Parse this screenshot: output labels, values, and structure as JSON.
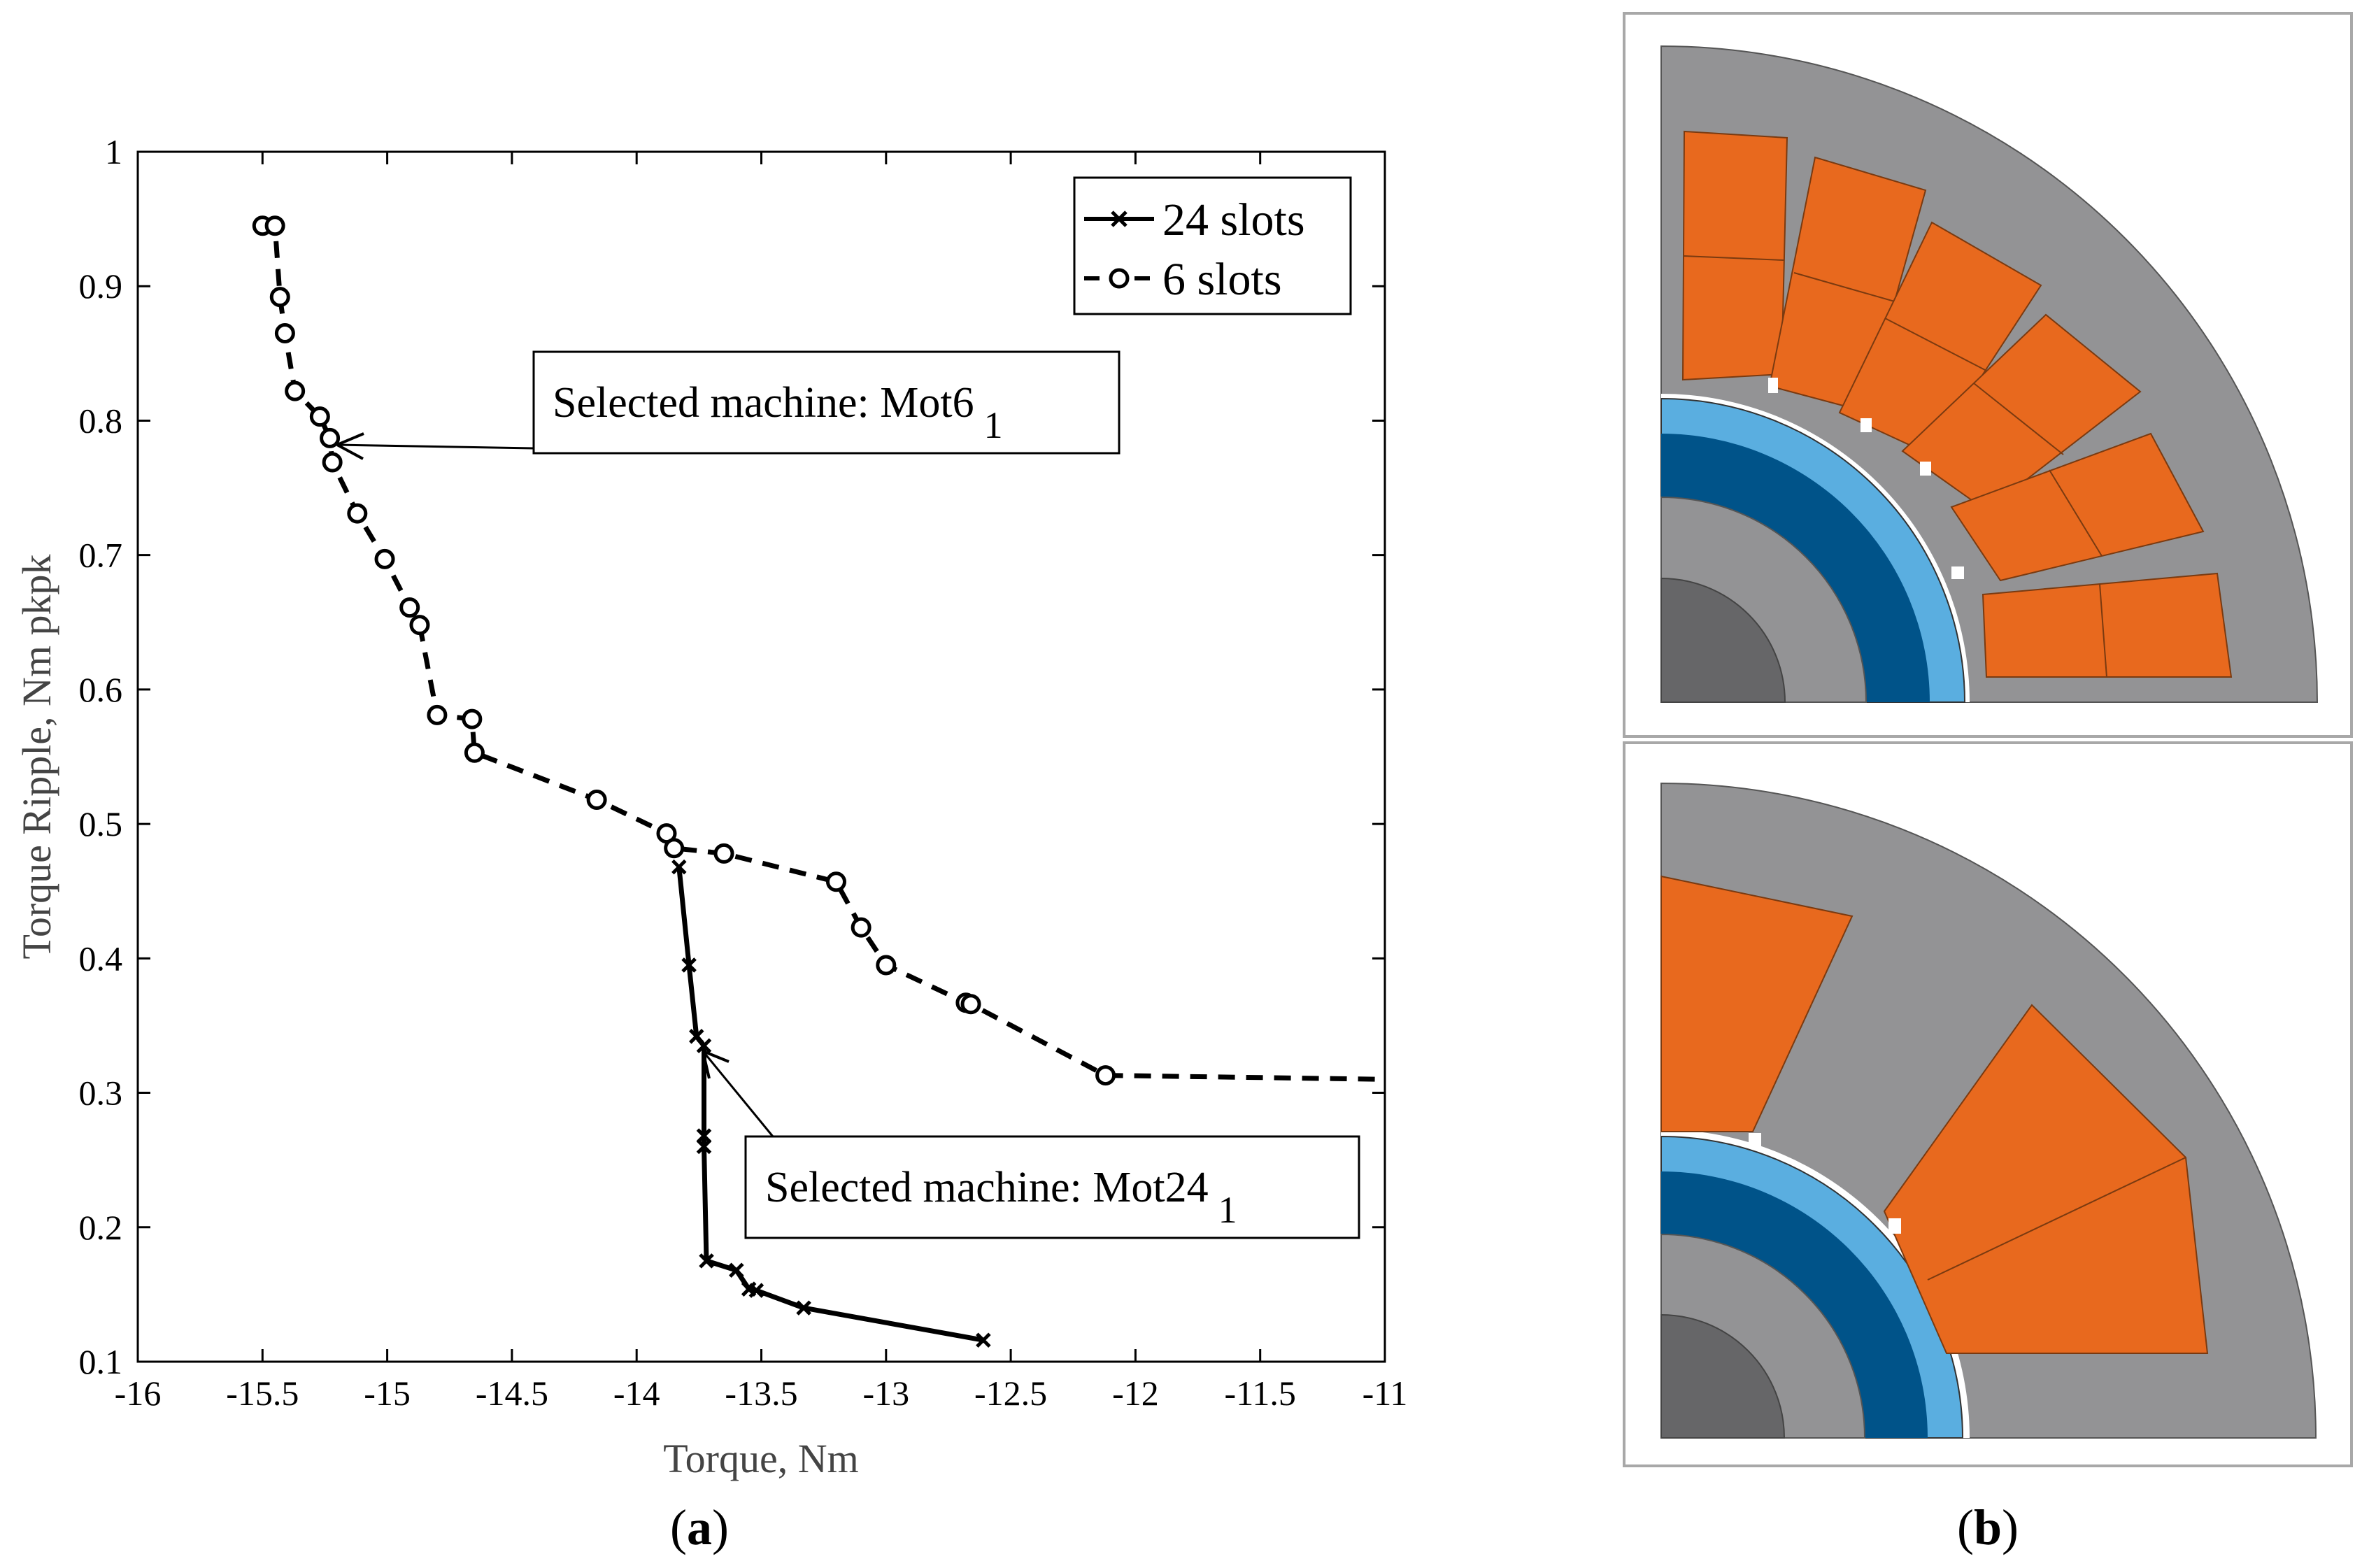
{
  "panel_a": {
    "label_open": "(",
    "label_letter": "a",
    "label_close": ")"
  },
  "panel_b": {
    "label_open": "(",
    "label_letter": "b",
    "label_close": ")"
  },
  "chart_data": {
    "type": "line",
    "title": "",
    "xlabel": "Torque, Nm",
    "ylabel": "Torque Ripple, Nm pkpk",
    "xlim": [
      -16,
      -11
    ],
    "ylim": [
      0.1,
      1
    ],
    "xticks": [
      -16,
      -15.5,
      -15,
      -14.5,
      -14,
      -13.5,
      -13,
      -12.5,
      -12,
      -11.5,
      -11
    ],
    "xtick_labels": [
      "-16",
      "-15.5",
      "-15",
      "-14.5",
      "-14",
      "-13.5",
      "-13",
      "-12.5",
      "-12",
      "-11.5",
      "-11"
    ],
    "yticks": [
      0.1,
      0.2,
      0.3,
      0.4,
      0.5,
      0.6,
      0.7,
      0.8,
      0.9,
      1
    ],
    "ytick_labels": [
      "0.1",
      "0.2",
      "0.3",
      "0.4",
      "0.5",
      "0.6",
      "0.7",
      "0.8",
      "0.9",
      "1"
    ],
    "legend_position": "top-right",
    "series": [
      {
        "name": "24 slots",
        "line": "solid",
        "marker": "x",
        "x": [
          -13.83,
          -13.79,
          -13.76,
          -13.73,
          -13.73,
          -13.73,
          -13.72,
          -13.6,
          -13.55,
          -13.52,
          -13.33,
          -12.61
        ],
        "y": [
          0.468,
          0.395,
          0.342,
          0.335,
          0.268,
          0.26,
          0.175,
          0.168,
          0.154,
          0.153,
          0.14,
          0.116
        ]
      },
      {
        "name": "6 slots",
        "line": "dashed",
        "marker": "o",
        "x": [
          -15.5,
          -15.45,
          -15.43,
          -15.41,
          -15.37,
          -15.27,
          -15.23,
          -15.22,
          -15.12,
          -15.01,
          -14.91,
          -14.87,
          -14.8,
          -14.66,
          -14.65,
          -14.16,
          -13.88,
          -13.85,
          -13.65,
          -13.2,
          -13.1,
          -13.0,
          -12.68,
          -12.66,
          -12.12,
          -11.0
        ],
        "y": [
          0.945,
          0.945,
          0.892,
          0.865,
          0.822,
          0.803,
          0.787,
          0.769,
          0.731,
          0.697,
          0.661,
          0.648,
          0.581,
          0.578,
          0.553,
          0.518,
          0.493,
          0.482,
          0.478,
          0.457,
          0.423,
          0.395,
          0.367,
          0.366,
          0.313,
          0.31
        ]
      }
    ],
    "annotations": [
      {
        "text": "Selected machine: Mot6",
        "subscript": "1",
        "target": [
          -15.22,
          0.78
        ]
      },
      {
        "text": "Selected machine: Mot24",
        "subscript": "1",
        "target": [
          -13.73,
          0.333
        ]
      }
    ]
  },
  "colors": {
    "steel": "#939395",
    "steel_dark": "#666668",
    "winding": "#e8691e",
    "magnet": "#005389",
    "sleeve": "#5aaee0",
    "frame": "#a8a8a8"
  }
}
